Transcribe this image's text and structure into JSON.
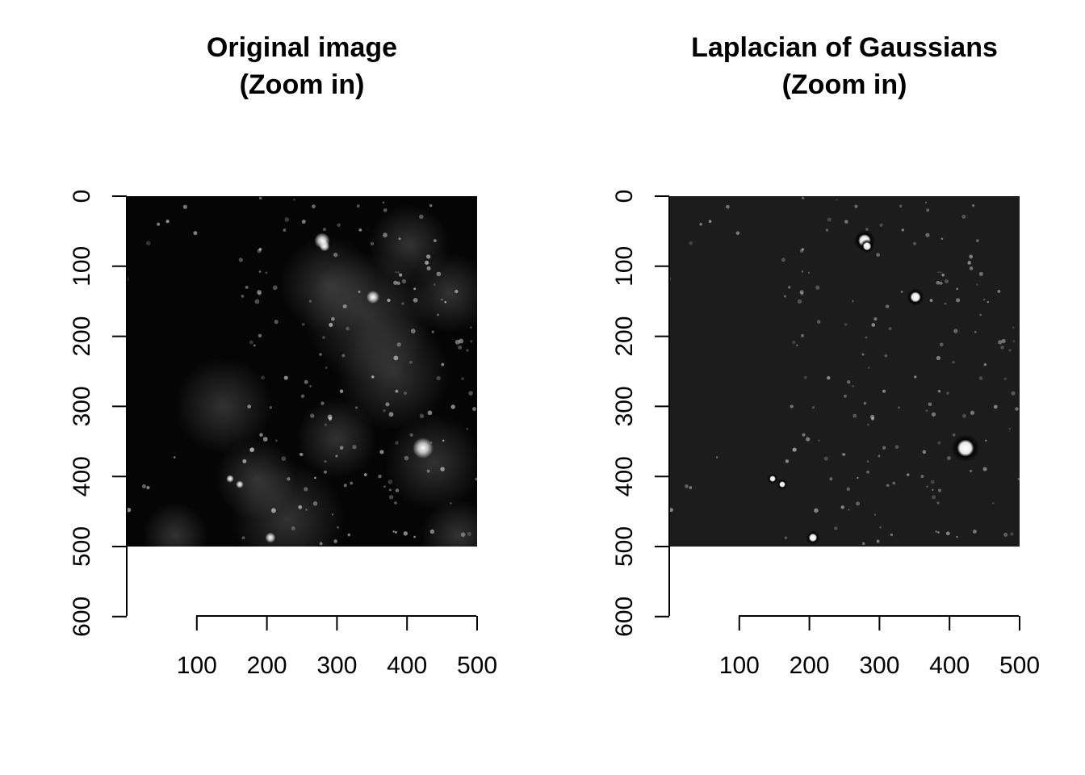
{
  "panels": [
    {
      "title_line1": "Original image",
      "title_line2": "(Zoom in)",
      "image_kind": "original",
      "x_ticks": [
        "100",
        "200",
        "300",
        "400",
        "500"
      ],
      "y_ticks": [
        "0",
        "100",
        "200",
        "300",
        "400",
        "500",
        "600"
      ]
    },
    {
      "title_line1": "Laplacian of Gaussians",
      "title_line2": "(Zoom in)",
      "image_kind": "log",
      "x_ticks": [
        "100",
        "200",
        "300",
        "400",
        "500"
      ],
      "y_ticks": [
        "0",
        "100",
        "200",
        "300",
        "400",
        "500",
        "600"
      ]
    }
  ],
  "colors": {
    "original_background": "#050505",
    "log_background": "#1c1c1c"
  }
}
